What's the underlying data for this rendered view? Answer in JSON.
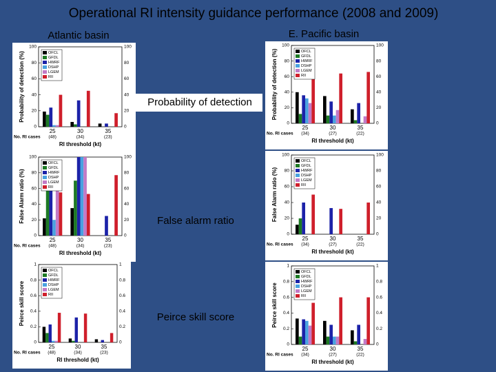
{
  "title": "Operational RI intensity guidance performance (2008 and 2009)",
  "basins": [
    "Atlantic basin",
    "E. Pacific basin"
  ],
  "metrics": [
    "Probability of detection",
    "False alarm ratio",
    "Peirce skill score"
  ],
  "chart_data": [
    {
      "type": "bar",
      "ylabel": "Probability of detection (%)",
      "xlabel": "RI threshold (kt)",
      "case_label": "No. RI cases",
      "categories": [
        "25",
        "30",
        "35"
      ],
      "case_counts": [
        "(48)",
        "(34)",
        "(23)"
      ],
      "ylim": [
        0,
        100
      ],
      "yticks": [
        0,
        20,
        40,
        60,
        80,
        100
      ],
      "series": [
        {
          "name": "OFCL",
          "color": "#000000",
          "values": [
            19,
            6,
            4
          ]
        },
        {
          "name": "GFDL",
          "color": "#1d7a24",
          "values": [
            15,
            3,
            0
          ]
        },
        {
          "name": "HWRF",
          "color": "#1c22a8",
          "values": [
            24,
            33,
            4
          ]
        },
        {
          "name": "DSHP",
          "color": "#4aa2e0",
          "values": [
            2,
            0,
            0
          ]
        },
        {
          "name": "LGEM",
          "color": "#c27ac6",
          "values": [
            2,
            0,
            0
          ]
        },
        {
          "name": "RII",
          "color": "#cf1f2b",
          "values": [
            40,
            45,
            17
          ]
        }
      ]
    },
    {
      "type": "bar",
      "ylabel": "False Alarm ratio (%)",
      "xlabel": "RI threshold (kt)",
      "case_label": "No. RI cases",
      "categories": [
        "25",
        "30",
        "35"
      ],
      "case_counts": [
        "(48)",
        "(34)",
        "(23)"
      ],
      "ylim": [
        0,
        100
      ],
      "yticks": [
        0,
        20,
        40,
        60,
        80,
        100
      ],
      "series": [
        {
          "name": "OFCL",
          "color": "#000000",
          "values": [
            22,
            35,
            0
          ]
        },
        {
          "name": "GFDL",
          "color": "#1d7a24",
          "values": [
            67,
            70,
            0
          ]
        },
        {
          "name": "HWRF",
          "color": "#1c22a8",
          "values": [
            80,
            100,
            25
          ]
        },
        {
          "name": "DSHP",
          "color": "#4aa2e0",
          "values": [
            20,
            100,
            0
          ]
        },
        {
          "name": "LGEM",
          "color": "#c27ac6",
          "values": [
            67,
            100,
            0
          ]
        },
        {
          "name": "RII",
          "color": "#cf1f2b",
          "values": [
            55,
            53,
            77
          ]
        }
      ]
    },
    {
      "type": "bar",
      "ylabel": "Peirce skill score",
      "xlabel": "RI threshold (kt)",
      "case_label": "No. RI cases",
      "categories": [
        "25",
        "30",
        "35"
      ],
      "case_counts": [
        "(48)",
        "(34)",
        "(23)"
      ],
      "ylim": [
        0,
        1
      ],
      "yticks": [
        0,
        0.2,
        0.4,
        0.6,
        0.8,
        1
      ],
      "series": [
        {
          "name": "OFCL",
          "color": "#000000",
          "values": [
            0.2,
            0.05,
            0.04
          ]
        },
        {
          "name": "GFDL",
          "color": "#1d7a24",
          "values": [
            0.12,
            0.02,
            0
          ]
        },
        {
          "name": "HWRF",
          "color": "#1c22a8",
          "values": [
            0.23,
            0.32,
            0.03
          ]
        },
        {
          "name": "DSHP",
          "color": "#4aa2e0",
          "values": [
            0.02,
            0,
            0
          ]
        },
        {
          "name": "LGEM",
          "color": "#c27ac6",
          "values": [
            0.02,
            0,
            0
          ]
        },
        {
          "name": "RII",
          "color": "#cf1f2b",
          "values": [
            0.38,
            0.37,
            0.12
          ]
        }
      ]
    },
    {
      "type": "bar",
      "ylabel": "Probability of detection (%)",
      "xlabel": "RI threshold (kt)",
      "case_label": "No. RI cases",
      "categories": [
        "25",
        "30",
        "35"
      ],
      "case_counts": [
        "(34)",
        "(27)",
        "(22)"
      ],
      "ylim": [
        0,
        100
      ],
      "yticks": [
        0,
        20,
        40,
        60,
        80,
        100
      ],
      "series": [
        {
          "name": "OFCL",
          "color": "#000000",
          "values": [
            40,
            35,
            18
          ]
        },
        {
          "name": "GFDL",
          "color": "#1d7a24",
          "values": [
            12,
            10,
            4
          ]
        },
        {
          "name": "HWRF",
          "color": "#1c22a8",
          "values": [
            36,
            28,
            26
          ]
        },
        {
          "name": "DSHP",
          "color": "#4aa2e0",
          "values": [
            32,
            10,
            0
          ]
        },
        {
          "name": "LGEM",
          "color": "#c27ac6",
          "values": [
            26,
            17,
            9
          ]
        },
        {
          "name": "RII",
          "color": "#cf1f2b",
          "values": [
            60,
            64,
            66
          ]
        }
      ]
    },
    {
      "type": "bar",
      "ylabel": "False Alarm ratio (%)",
      "xlabel": "RI threshold (kt)",
      "case_label": "No. RI cases",
      "categories": [
        "25",
        "30",
        "35"
      ],
      "case_counts": [
        "(34)",
        "(27)",
        "(22)"
      ],
      "ylim": [
        0,
        100
      ],
      "yticks": [
        0,
        20,
        40,
        60,
        80,
        100
      ],
      "series": [
        {
          "name": "OFCL",
          "color": "#000000",
          "values": [
            12,
            0,
            0
          ]
        },
        {
          "name": "GFDL",
          "color": "#1d7a24",
          "values": [
            20,
            0,
            0
          ]
        },
        {
          "name": "HWRF",
          "color": "#1c22a8",
          "values": [
            40,
            33,
            0
          ]
        },
        {
          "name": "DSHP",
          "color": "#4aa2e0",
          "values": [
            0,
            0,
            0
          ]
        },
        {
          "name": "LGEM",
          "color": "#c27ac6",
          "values": [
            0,
            0,
            0
          ]
        },
        {
          "name": "RII",
          "color": "#cf1f2b",
          "values": [
            50,
            32,
            40
          ]
        }
      ]
    },
    {
      "type": "bar",
      "ylabel": "Peirce skill score",
      "xlabel": "RI threshold (kt)",
      "case_label": "No. RI cases",
      "categories": [
        "25",
        "30",
        "35"
      ],
      "case_counts": [
        "(34)",
        "(27)",
        "(22)"
      ],
      "ylim": [
        0,
        1
      ],
      "yticks": [
        0,
        0.2,
        0.4,
        0.6,
        0.8,
        1
      ],
      "series": [
        {
          "name": "OFCL",
          "color": "#000000",
          "values": [
            0.33,
            0.3,
            0.18
          ]
        },
        {
          "name": "GFDL",
          "color": "#1d7a24",
          "values": [
            0.1,
            0.1,
            0.04
          ]
        },
        {
          "name": "HWRF",
          "color": "#1c22a8",
          "values": [
            0.32,
            0.25,
            0.25
          ]
        },
        {
          "name": "DSHP",
          "color": "#4aa2e0",
          "values": [
            0.3,
            0.1,
            0
          ]
        },
        {
          "name": "LGEM",
          "color": "#c27ac6",
          "values": [
            0.24,
            0.1,
            0.07
          ]
        },
        {
          "name": "RII",
          "color": "#cf1f2b",
          "values": [
            0.53,
            0.6,
            0.6
          ]
        }
      ]
    }
  ]
}
